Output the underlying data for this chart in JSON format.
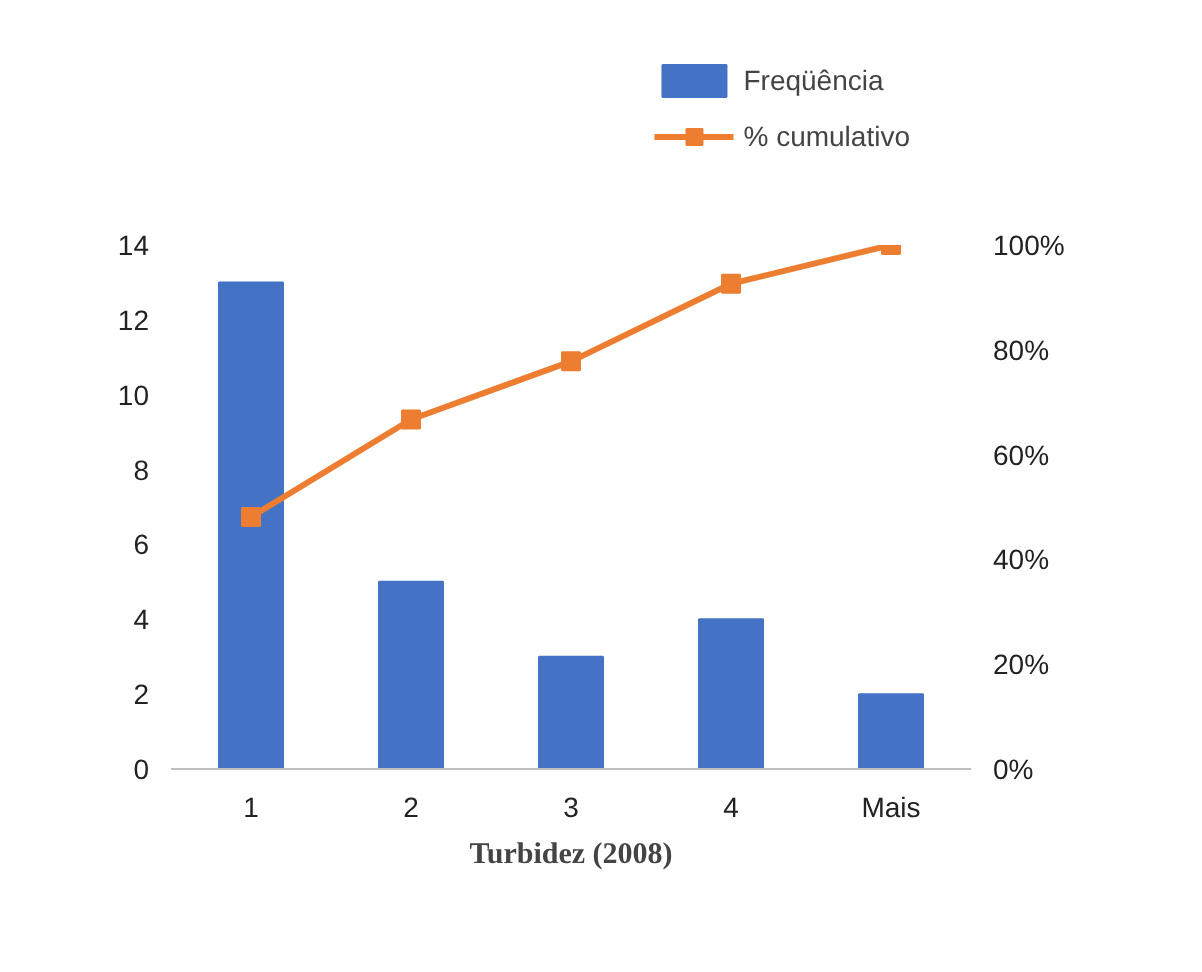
{
  "chart_data": {
    "type": "bar",
    "xlabel": "Turbidez (2008)",
    "categories": [
      "1",
      "2",
      "3",
      "4",
      "Mais"
    ],
    "series": [
      {
        "name": "Freqüência",
        "color": "#4472c4",
        "values": [
          13,
          5,
          3,
          4,
          2
        ]
      },
      {
        "name": "% cumulativo",
        "type": "line",
        "axis": "y2",
        "color": "#ed7d31",
        "marker": "square",
        "values": [
          48.1,
          66.7,
          77.8,
          92.6,
          100
        ]
      }
    ],
    "ylim": [
      0,
      14
    ],
    "yticks": [
      0,
      2,
      4,
      6,
      8,
      10,
      12,
      14
    ],
    "y2lim": [
      0,
      100
    ],
    "y2ticks": [
      {
        "value": 0,
        "label": "0%"
      },
      {
        "value": 20,
        "label": "20%"
      },
      {
        "value": 40,
        "label": "40%"
      },
      {
        "value": 60,
        "label": "60%"
      },
      {
        "value": 80,
        "label": "80%"
      },
      {
        "value": 100,
        "label": "100%"
      }
    ],
    "grid": false,
    "legend": "top right"
  }
}
